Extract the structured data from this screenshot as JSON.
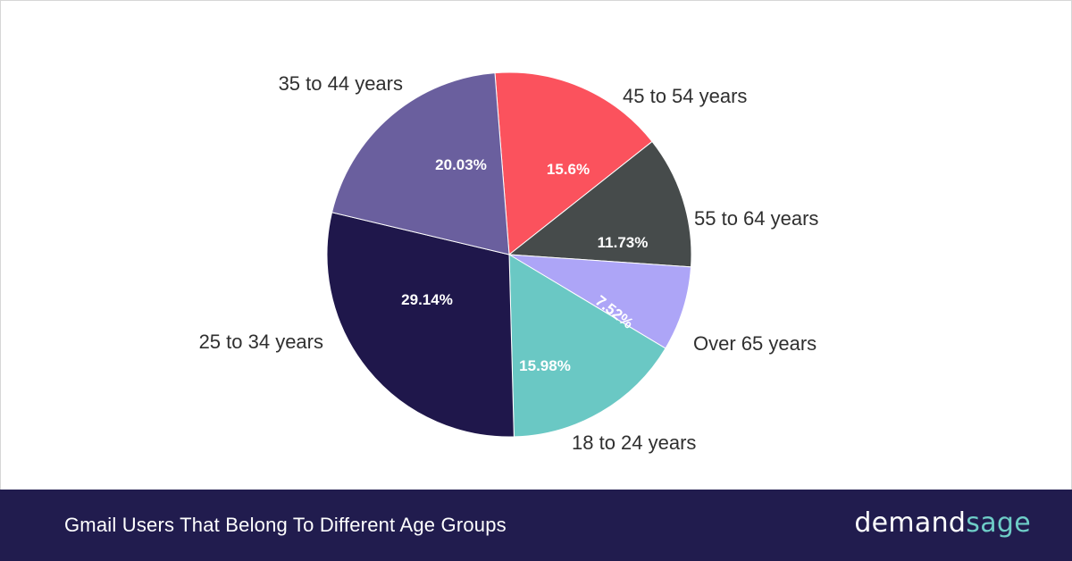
{
  "footer": {
    "title": "Gmail Users That Belong To Different Age Groups",
    "logo_part1": "demand",
    "logo_part2": "sage"
  },
  "colors": {
    "footer_bg": "#211c4e",
    "logo_accent": "#6ecdc7"
  },
  "chart_data": {
    "type": "pie",
    "title": "",
    "slices": [
      {
        "label": "45 to 54 years",
        "value": 15.6,
        "value_label": "15.6%",
        "color": "#fb525d"
      },
      {
        "label": "55 to 64 years",
        "value": 11.73,
        "value_label": "11.73%",
        "color": "#464b4b"
      },
      {
        "label": "Over 65 years",
        "value": 7.52,
        "value_label": "7.52%",
        "color": "#ada5f7"
      },
      {
        "label": "18 to 24 years",
        "value": 15.98,
        "value_label": "15.98%",
        "color": "#6ac8c4"
      },
      {
        "label": "25 to 34 years",
        "value": 29.14,
        "value_label": "29.14%",
        "color": "#1f174b"
      },
      {
        "label": "35 to 44 years",
        "value": 20.03,
        "value_label": "20.03%",
        "color": "#6a5f9e"
      }
    ]
  }
}
